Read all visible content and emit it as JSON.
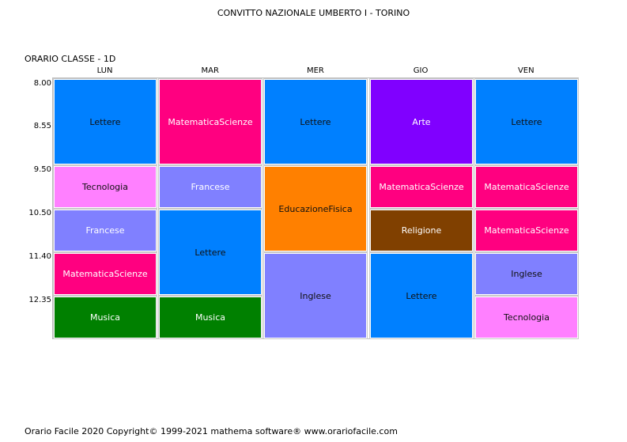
{
  "title": "CONVITTO NAZIONALE UMBERTO I - TORINO",
  "class_label": "ORARIO CLASSE   -  1D",
  "days": [
    "LUN",
    "MAR",
    "MER",
    "GIO",
    "VEN"
  ],
  "times": [
    "8.00",
    "8.55",
    "9.50",
    "10.50",
    "11.40",
    "12.35"
  ],
  "colors": {
    "Lettere": "#0080ff",
    "MatematicaScienze": "#ff0080",
    "Arte": "#8000ff",
    "Tecnologia": "#ff80ff",
    "Francese": "#8080ff",
    "Inglese": "#8080ff",
    "EducazioneFisica": "#ff8000",
    "Religione": "#804000",
    "Musica": "#008000"
  },
  "text_colors": {
    "Lettere": "#111111",
    "MatematicaScienze": "#ffffff",
    "Arte": "#ffffff",
    "Tecnologia": "#111111",
    "Francese": "#ffffff",
    "Inglese": "#111111",
    "EducazioneFisica": "#111111",
    "Religione": "#ffffff",
    "Musica": "#ffffff"
  },
  "schedule": [
    [
      {
        "subject": "Lettere",
        "slots": 2
      },
      {
        "subject": "Tecnologia",
        "slots": 1
      },
      {
        "subject": "Francese",
        "slots": 1
      },
      {
        "subject": "MatematicaScienze",
        "slots": 1
      },
      {
        "subject": "Musica",
        "slots": 1
      }
    ],
    [
      {
        "subject": "MatematicaScienze",
        "slots": 2
      },
      {
        "subject": "Francese",
        "slots": 1
      },
      {
        "subject": "Lettere",
        "slots": 2
      },
      {
        "subject": "Musica",
        "slots": 1
      }
    ],
    [
      {
        "subject": "Lettere",
        "slots": 2
      },
      {
        "subject": "EducazioneFisica",
        "slots": 2
      },
      {
        "subject": "Inglese",
        "slots": 2
      }
    ],
    [
      {
        "subject": "Arte",
        "slots": 2
      },
      {
        "subject": "MatematicaScienze",
        "slots": 1
      },
      {
        "subject": "Religione",
        "slots": 1
      },
      {
        "subject": "Lettere",
        "slots": 2
      }
    ],
    [
      {
        "subject": "Lettere",
        "slots": 2
      },
      {
        "subject": "MatematicaScienze",
        "slots": 1
      },
      {
        "subject": "MatematicaScienze",
        "slots": 1
      },
      {
        "subject": "Inglese",
        "slots": 1
      },
      {
        "subject": "Tecnologia",
        "slots": 1
      }
    ]
  ],
  "footer": "Orario Facile 2020  Copyright© 1999-2021 mathema software®     www.orariofacile.com"
}
